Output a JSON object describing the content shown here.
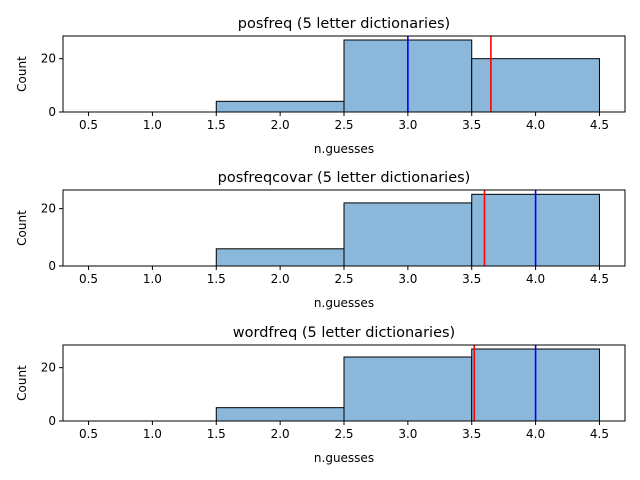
{
  "chart_data": [
    {
      "type": "bar",
      "title": "posfreq (5 letter dictionaries)",
      "xlabel": "n.guesses",
      "ylabel": "Count",
      "bin_edges": [
        0.5,
        1.5,
        2.5,
        3.5,
        4.5
      ],
      "counts": [
        0,
        4,
        27,
        20
      ],
      "xlim": [
        0.3,
        4.7
      ],
      "ylim": [
        0,
        28.5
      ],
      "xticks": [
        "0.5",
        "1.0",
        "1.5",
        "2.0",
        "2.5",
        "3.0",
        "3.5",
        "4.0",
        "4.5"
      ],
      "yticks": [
        "0",
        "20"
      ],
      "lines": [
        {
          "x": 3.0,
          "color": "#0000ff"
        },
        {
          "x": 3.65,
          "color": "#ff0000"
        }
      ]
    },
    {
      "type": "bar",
      "title": "posfreqcovar (5 letter dictionaries)",
      "xlabel": "n.guesses",
      "ylabel": "Count",
      "bin_edges": [
        0.5,
        1.5,
        2.5,
        3.5,
        4.5
      ],
      "counts": [
        0,
        6,
        22,
        25
      ],
      "xlim": [
        0.3,
        4.7
      ],
      "ylim": [
        0,
        26.5
      ],
      "xticks": [
        "0.5",
        "1.0",
        "1.5",
        "2.0",
        "2.5",
        "3.0",
        "3.5",
        "4.0",
        "4.5"
      ],
      "yticks": [
        "0",
        "20"
      ],
      "lines": [
        {
          "x": 4.0,
          "color": "#0000ff"
        },
        {
          "x": 3.6,
          "color": "#ff0000"
        }
      ]
    },
    {
      "type": "bar",
      "title": "wordfreq (5 letter dictionaries)",
      "xlabel": "n.guesses",
      "ylabel": "Count",
      "bin_edges": [
        0.5,
        1.5,
        2.5,
        3.5,
        4.5
      ],
      "counts": [
        0,
        5,
        24,
        27
      ],
      "xlim": [
        0.3,
        4.7
      ],
      "ylim": [
        0,
        28.5
      ],
      "xticks": [
        "0.5",
        "1.0",
        "1.5",
        "2.0",
        "2.5",
        "3.0",
        "3.5",
        "4.0",
        "4.5"
      ],
      "yticks": [
        "0",
        "20"
      ],
      "lines": [
        {
          "x": 4.0,
          "color": "#0000ff"
        },
        {
          "x": 3.52,
          "color": "#ff0000"
        }
      ]
    }
  ],
  "style": {
    "bar_fill": "#8bb8da",
    "bar_edge": "#000000"
  }
}
